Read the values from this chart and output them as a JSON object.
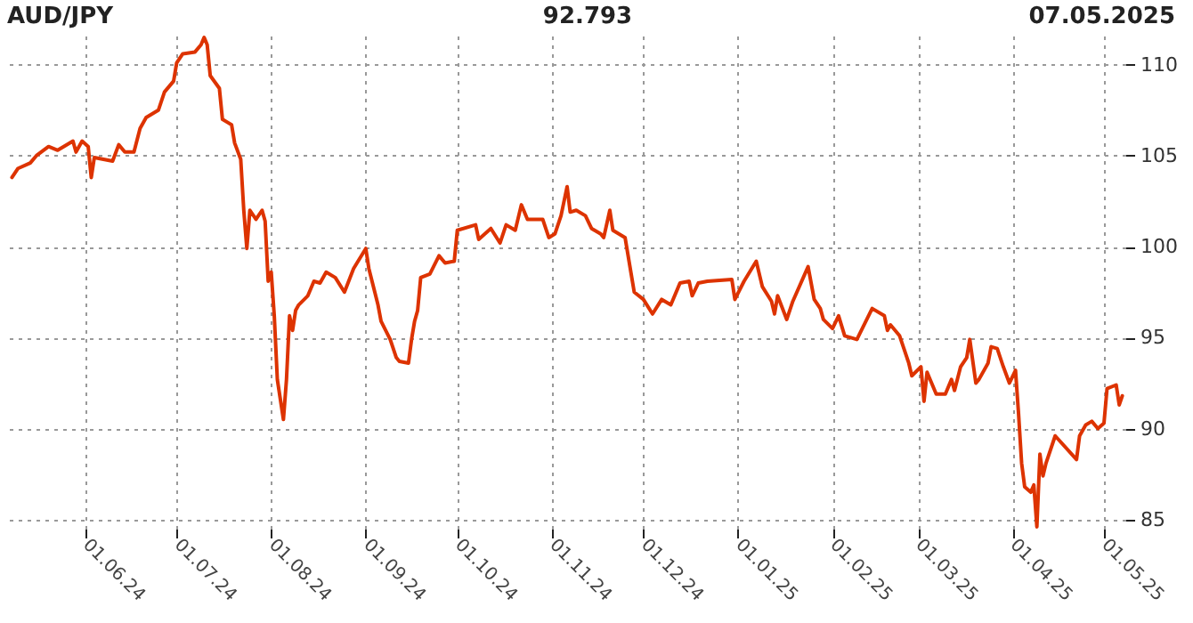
{
  "chart_data": {
    "type": "line",
    "title": "AUD/JPY",
    "annotations": [
      "92.793",
      "07.05.2025"
    ],
    "x": [
      "2024-05-08",
      "2024-05-10",
      "2024-05-14",
      "2024-05-16",
      "2024-05-20",
      "2024-05-23",
      "2024-05-28",
      "2024-05-29",
      "2024-05-31",
      "2024-06-02",
      "2024-06-03",
      "2024-06-04",
      "2024-06-10",
      "2024-06-12",
      "2024-06-14",
      "2024-06-17",
      "2024-06-19",
      "2024-06-21",
      "2024-06-25",
      "2024-06-27",
      "2024-06-30",
      "2024-07-01",
      "2024-07-03",
      "2024-07-07",
      "2024-07-09",
      "2024-07-10",
      "2024-07-11",
      "2024-07-12",
      "2024-07-15",
      "2024-07-16",
      "2024-07-19",
      "2024-07-20",
      "2024-07-22",
      "2024-07-23",
      "2024-07-24",
      "2024-07-25",
      "2024-07-27",
      "2024-07-29",
      "2024-07-30",
      "2024-07-31",
      "2024-08-01",
      "2024-08-02",
      "2024-08-03",
      "2024-08-05",
      "2024-08-06",
      "2024-08-07",
      "2024-08-08",
      "2024-08-09",
      "2024-08-10",
      "2024-08-13",
      "2024-08-15",
      "2024-08-17",
      "2024-08-19",
      "2024-08-22",
      "2024-08-25",
      "2024-08-28",
      "2024-09-01",
      "2024-09-02",
      "2024-09-05",
      "2024-09-06",
      "2024-09-09",
      "2024-09-11",
      "2024-09-12",
      "2024-09-15",
      "2024-09-16",
      "2024-09-17",
      "2024-09-18",
      "2024-09-19",
      "2024-09-22",
      "2024-09-25",
      "2024-09-27",
      "2024-09-30",
      "2024-10-01",
      "2024-10-07",
      "2024-10-08",
      "2024-10-12",
      "2024-10-15",
      "2024-10-17",
      "2024-10-20",
      "2024-10-22",
      "2024-10-24",
      "2024-10-29",
      "2024-10-31",
      "2024-11-02",
      "2024-11-04",
      "2024-11-06",
      "2024-11-07",
      "2024-11-09",
      "2024-11-12",
      "2024-11-14",
      "2024-11-17",
      "2024-11-18",
      "2024-11-20",
      "2024-11-21",
      "2024-11-25",
      "2024-11-27",
      "2024-11-28",
      "2024-12-01",
      "2024-12-04",
      "2024-12-07",
      "2024-12-10",
      "2024-12-13",
      "2024-12-16",
      "2024-12-17",
      "2024-12-19",
      "2024-12-22",
      "2024-12-30",
      "2024-12-31",
      "2025-01-03",
      "2025-01-07",
      "2025-01-09",
      "2025-01-12",
      "2025-01-13",
      "2025-01-14",
      "2025-01-17",
      "2025-01-19",
      "2025-01-24",
      "2025-01-26",
      "2025-01-28",
      "2025-01-29",
      "2025-02-01",
      "2025-02-03",
      "2025-02-05",
      "2025-02-09",
      "2025-02-14",
      "2025-02-18",
      "2025-02-19",
      "2025-02-20",
      "2025-02-23",
      "2025-02-26",
      "2025-02-27",
      "2025-03-02",
      "2025-03-03",
      "2025-03-04",
      "2025-03-07",
      "2025-03-10",
      "2025-03-12",
      "2025-03-13",
      "2025-03-15",
      "2025-03-17",
      "2025-03-18",
      "2025-03-20",
      "2025-03-21",
      "2025-03-24",
      "2025-03-25",
      "2025-03-27",
      "2025-03-29",
      "2025-03-31",
      "2025-04-02",
      "2025-04-03",
      "2025-04-04",
      "2025-04-05",
      "2025-04-07",
      "2025-04-08",
      "2025-04-09",
      "2025-04-10",
      "2025-04-11",
      "2025-04-12",
      "2025-04-15",
      "2025-04-22",
      "2025-04-23",
      "2025-04-25",
      "2025-04-27",
      "2025-04-29",
      "2025-05-01",
      "2025-05-02",
      "2025-05-05",
      "2025-05-06",
      "2025-05-07"
    ],
    "series": [
      {
        "color": "#dd3300",
        "values": [
          103.8,
          104.3,
          104.6,
          105.0,
          105.5,
          105.3,
          105.8,
          105.2,
          105.8,
          105.5,
          103.8,
          104.9,
          104.7,
          105.6,
          105.2,
          105.2,
          106.5,
          107.1,
          107.5,
          108.5,
          109.1,
          110.1,
          110.6,
          110.7,
          111.1,
          111.5,
          111.1,
          109.4,
          108.7,
          107.0,
          106.7,
          105.7,
          104.8,
          102.0,
          99.9,
          102.0,
          101.5,
          102.0,
          101.4,
          98.1,
          98.6,
          96.2,
          92.7,
          90.5,
          92.7,
          96.2,
          95.4,
          96.5,
          96.8,
          97.3,
          98.1,
          98.0,
          98.6,
          98.3,
          97.5,
          98.8,
          99.9,
          98.8,
          96.8,
          95.9,
          94.9,
          93.9,
          93.7,
          93.6,
          94.9,
          95.9,
          96.5,
          98.3,
          98.5,
          99.5,
          99.1,
          99.2,
          100.9,
          101.2,
          100.4,
          101.0,
          100.2,
          101.2,
          100.9,
          102.3,
          101.5,
          101.5,
          100.5,
          100.7,
          101.7,
          103.3,
          101.9,
          102.0,
          101.7,
          101.0,
          100.7,
          100.5,
          102.0,
          100.9,
          100.5,
          98.5,
          97.5,
          97.1,
          96.3,
          97.1,
          96.8,
          98.0,
          98.1,
          97.3,
          98.0,
          98.1,
          98.2,
          97.1,
          98.1,
          99.2,
          97.8,
          97.0,
          96.3,
          97.3,
          96.0,
          97.0,
          98.9,
          97.1,
          96.6,
          96.0,
          95.5,
          96.2,
          95.1,
          94.9,
          96.6,
          96.2,
          95.4,
          95.7,
          95.1,
          93.6,
          92.9,
          93.4,
          91.5,
          93.1,
          91.9,
          91.9,
          92.7,
          92.1,
          93.4,
          93.9,
          94.9,
          92.5,
          92.7,
          93.6,
          94.5,
          94.4,
          93.4,
          92.5,
          93.2,
          90.8,
          88.1,
          86.8,
          86.5,
          86.9,
          84.6,
          88.6,
          87.4,
          88.1,
          89.6,
          88.3,
          89.6,
          90.2,
          90.4,
          90.0,
          90.3,
          92.2,
          92.4,
          91.3,
          91.8
        ]
      }
    ],
    "xlim": [
      "2024-05-07",
      "2025-05-08"
    ],
    "xticks": [
      {
        "value": "2024-06-01",
        "label": "01.06.24"
      },
      {
        "value": "2024-07-01",
        "label": "01.07.24"
      },
      {
        "value": "2024-08-01",
        "label": "01.08.24"
      },
      {
        "value": "2024-09-01",
        "label": "01.09.24"
      },
      {
        "value": "2024-10-01",
        "label": "01.10.24"
      },
      {
        "value": "2024-11-01",
        "label": "01.11.24"
      },
      {
        "value": "2024-12-01",
        "label": "01.12.24"
      },
      {
        "value": "2025-01-01",
        "label": "01.01.25"
      },
      {
        "value": "2025-02-01",
        "label": "01.02.25"
      },
      {
        "value": "2025-03-01",
        "label": "01.03.25"
      },
      {
        "value": "2025-04-01",
        "label": "01.04.25"
      },
      {
        "value": "2025-05-01",
        "label": "01.05.25"
      }
    ],
    "ylim": [
      84.5,
      111.6
    ],
    "yticks": [
      85,
      90,
      95,
      100,
      105,
      110
    ],
    "grid": true
  }
}
